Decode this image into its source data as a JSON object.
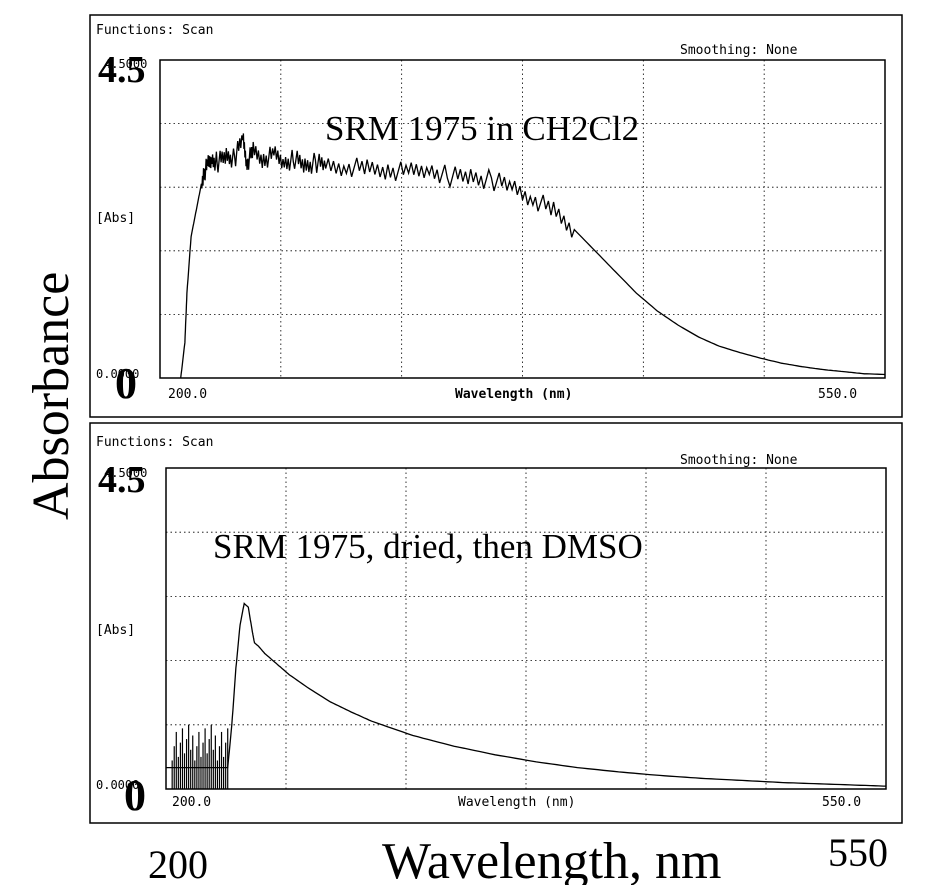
{
  "figure": {
    "ylabel": "Absorbance",
    "xlabel": "Wavelength, nm",
    "x_min_label": "200",
    "x_max_label": "550"
  },
  "chart_data": [
    {
      "type": "line",
      "title": "SRM 1975 in CH2Cl2",
      "functions_label": "Functions: Scan",
      "smoothing_label": "Smoothing: None",
      "ylabel": "[Abs]",
      "xlabel": "Wavelength (nm)",
      "x_tick_min": "200.0",
      "x_tick_max": "550.0",
      "y_tick_min_small": "0.0000",
      "y_tick_max_small": "4.5000",
      "y_big_min": "0",
      "y_big_max": "4.5",
      "xlim": [
        200,
        550
      ],
      "ylim": [
        0,
        4.5
      ],
      "grid": true,
      "series": [
        {
          "x": [
            210,
            212,
            213,
            215,
            217,
            219,
            221,
            223,
            225,
            228,
            232,
            236,
            240,
            242,
            245,
            250,
            255,
            260,
            265,
            270,
            275,
            280,
            290,
            300,
            310,
            320,
            330,
            340,
            350,
            360,
            370,
            380,
            390,
            400,
            410,
            420,
            430,
            440,
            450,
            460,
            470,
            480,
            490,
            500,
            510,
            520,
            530,
            540,
            550
          ],
          "y": [
            0.0,
            0.5,
            1.2,
            2.0,
            2.3,
            2.6,
            2.9,
            3.0,
            3.1,
            3.05,
            3.15,
            3.1,
            3.4,
            3.05,
            3.2,
            3.1,
            3.15,
            3.05,
            3.1,
            3.0,
            3.05,
            3.0,
            3.0,
            2.95,
            2.95,
            2.9,
            2.95,
            2.85,
            2.85,
            2.8,
            2.7,
            2.55,
            2.35,
            2.1,
            1.8,
            1.5,
            1.2,
            0.95,
            0.75,
            0.58,
            0.45,
            0.36,
            0.28,
            0.21,
            0.16,
            0.12,
            0.09,
            0.06,
            0.05
          ]
        }
      ]
    },
    {
      "type": "line",
      "title": "SRM 1975, dried, then DMSO",
      "functions_label": "Functions: Scan",
      "smoothing_label": "Smoothing: None",
      "ylabel": "[Abs]",
      "xlabel": "Wavelength (nm)",
      "x_tick_min": "200.0",
      "x_tick_max": "550.0",
      "y_tick_min_small": "0.0000",
      "y_tick_max_small": "4.5000",
      "y_big_min": "0",
      "y_big_max": "4.5",
      "xlim": [
        200,
        550
      ],
      "ylim": [
        0,
        4.5
      ],
      "grid": true,
      "series": [
        {
          "x": [
            200,
            230,
            232,
            234,
            236,
            238,
            240,
            242,
            243,
            245,
            248,
            252,
            256,
            260,
            270,
            280,
            290,
            300,
            320,
            340,
            360,
            380,
            400,
            420,
            440,
            460,
            480,
            500,
            520,
            540,
            550
          ],
          "y": [
            0.3,
            0.3,
            0.9,
            1.7,
            2.3,
            2.6,
            2.55,
            2.2,
            2.05,
            2.0,
            1.9,
            1.8,
            1.7,
            1.6,
            1.4,
            1.22,
            1.08,
            0.95,
            0.75,
            0.6,
            0.48,
            0.38,
            0.3,
            0.24,
            0.19,
            0.15,
            0.12,
            0.09,
            0.07,
            0.05,
            0.04
          ]
        }
      ]
    }
  ]
}
